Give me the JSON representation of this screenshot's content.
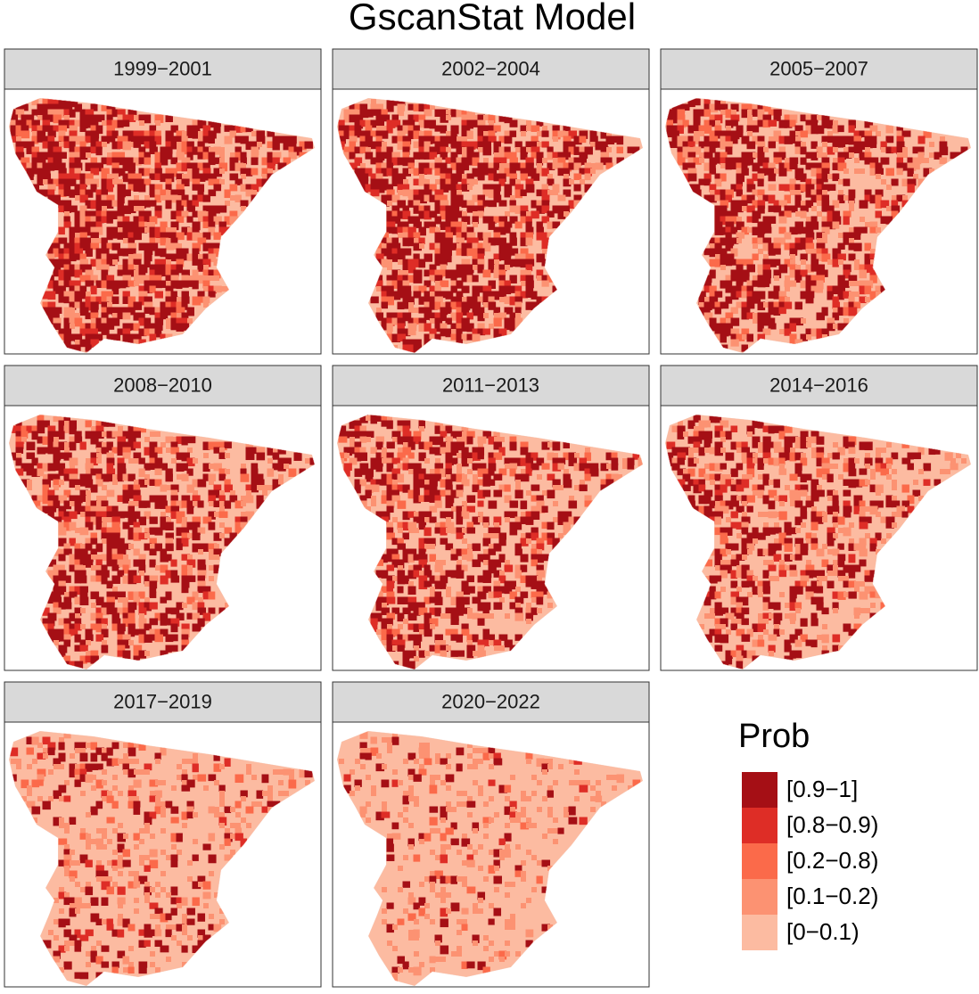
{
  "title": "GscanStat Model",
  "panels": [
    "1999−2001",
    "2002−2004",
    "2005−2007",
    "2008−2010",
    "2011−2013",
    "2014−2016",
    "2017−2019",
    "2020−2022"
  ],
  "legend": {
    "title": "Prob",
    "items": [
      {
        "label": "[0.9−1]",
        "color": "#a50f15"
      },
      {
        "label": "[0.8−0.9)",
        "color": "#de2d26"
      },
      {
        "label": "[0.2−0.8)",
        "color": "#fb6a4a"
      },
      {
        "label": "[0.1−0.2)",
        "color": "#fc9272"
      },
      {
        "label": "[0−0.1)",
        "color": "#fcbba1"
      }
    ]
  }
}
